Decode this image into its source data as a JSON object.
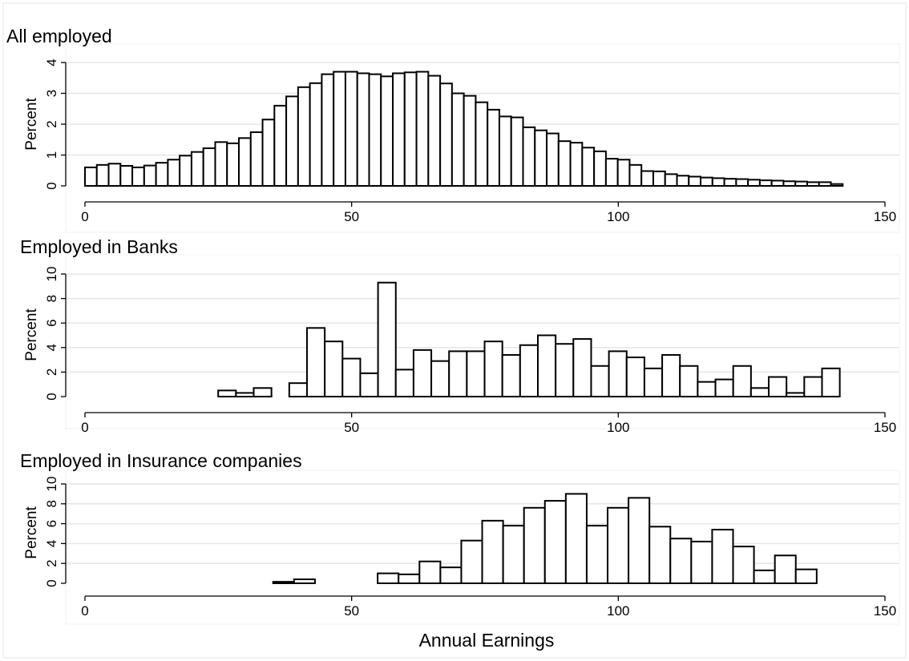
{
  "chart_data": [
    {
      "type": "bar",
      "title": "All employed",
      "ylabel": "Percent",
      "xlim": [
        0,
        150
      ],
      "ylim": [
        0,
        4
      ],
      "x_ticks": [
        0,
        50,
        100,
        150
      ],
      "y_ticks": [
        0,
        1,
        2,
        3,
        4
      ],
      "bin_width": 2.22,
      "x_start": 0,
      "values": [
        0.6,
        0.68,
        0.72,
        0.65,
        0.6,
        0.66,
        0.75,
        0.85,
        0.98,
        1.1,
        1.22,
        1.42,
        1.38,
        1.55,
        1.74,
        2.15,
        2.6,
        2.9,
        3.2,
        3.33,
        3.62,
        3.7,
        3.7,
        3.65,
        3.62,
        3.55,
        3.65,
        3.68,
        3.7,
        3.57,
        3.32,
        3.0,
        2.92,
        2.71,
        2.47,
        2.25,
        2.22,
        1.9,
        1.8,
        1.7,
        1.45,
        1.4,
        1.24,
        1.12,
        0.88,
        0.85,
        0.68,
        0.48,
        0.47,
        0.38,
        0.33,
        0.3,
        0.27,
        0.25,
        0.23,
        0.22,
        0.2,
        0.18,
        0.17,
        0.15,
        0.14,
        0.12,
        0.12,
        0.06
      ]
    },
    {
      "type": "bar",
      "title": "Employed in Banks",
      "ylabel": "Percent",
      "xlim": [
        0,
        150
      ],
      "ylim": [
        0,
        10
      ],
      "x_ticks": [
        0,
        50,
        100,
        150
      ],
      "y_ticks": [
        0,
        2,
        4,
        6,
        8,
        10
      ],
      "bin_width": 3.33,
      "x_start": 5,
      "values": [
        0,
        0,
        0,
        0,
        0,
        0,
        0.5,
        0.3,
        0.7,
        0,
        1.1,
        5.6,
        4.5,
        3.1,
        1.9,
        9.3,
        2.2,
        3.8,
        2.9,
        3.7,
        3.7,
        4.5,
        3.4,
        4.2,
        5.0,
        4.3,
        4.7,
        2.5,
        3.7,
        3.2,
        2.3,
        3.4,
        2.5,
        1.2,
        1.4,
        2.5,
        0.7,
        1.6,
        0.3,
        1.6,
        2.3
      ]
    },
    {
      "type": "bar",
      "title": "Employed in Insurance companies",
      "ylabel": "Percent",
      "xlabel": "Annual Earnings",
      "xlim": [
        0,
        150
      ],
      "ylim": [
        0,
        10
      ],
      "x_ticks": [
        0,
        50,
        100,
        150
      ],
      "y_ticks": [
        0,
        2,
        4,
        6,
        8,
        10
      ],
      "bin_width": 3.92,
      "x_start": 0,
      "values": [
        0,
        0,
        0,
        0,
        0,
        0,
        0,
        0,
        0,
        0.15,
        0.4,
        0,
        0,
        0,
        1.0,
        0.9,
        2.2,
        1.6,
        4.3,
        6.3,
        5.8,
        7.6,
        8.3,
        9.0,
        5.8,
        7.6,
        8.6,
        5.7,
        4.5,
        4.2,
        5.4,
        3.7,
        1.3,
        2.8,
        1.4
      ]
    }
  ]
}
